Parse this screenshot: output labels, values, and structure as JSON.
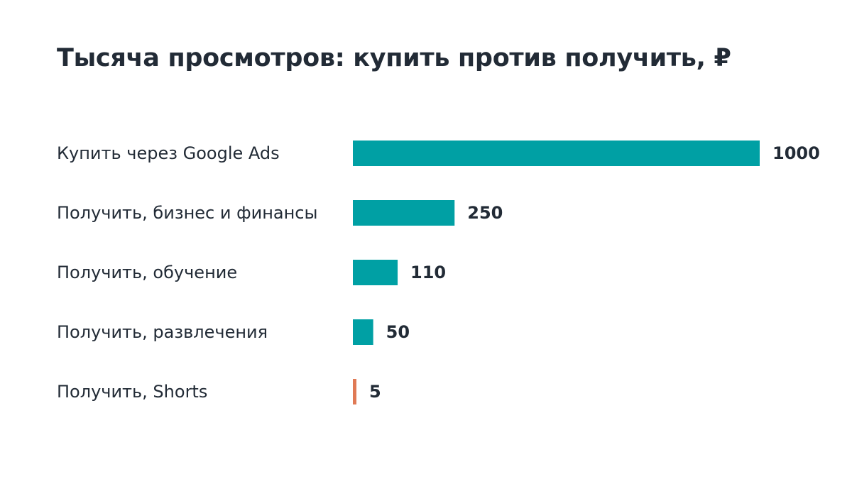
{
  "chart_data": {
    "type": "bar",
    "orientation": "horizontal",
    "title": "Тысяча просмотров: купить против получить, ₽",
    "categories": [
      "Купить через Google Ads",
      "Получить, бизнес и финансы",
      "Получить, обучение",
      "Получить, развлечения",
      "Получить, Shorts"
    ],
    "values": [
      1000,
      250,
      110,
      50,
      5
    ],
    "value_labels": [
      "1000",
      "250",
      "110",
      "50",
      "5"
    ],
    "colors": [
      "#00a0a4",
      "#00a0a4",
      "#00a0a4",
      "#00a0a4",
      "#e07a55"
    ],
    "xlim": [
      0,
      1000
    ],
    "grid": false,
    "legend": "none"
  }
}
